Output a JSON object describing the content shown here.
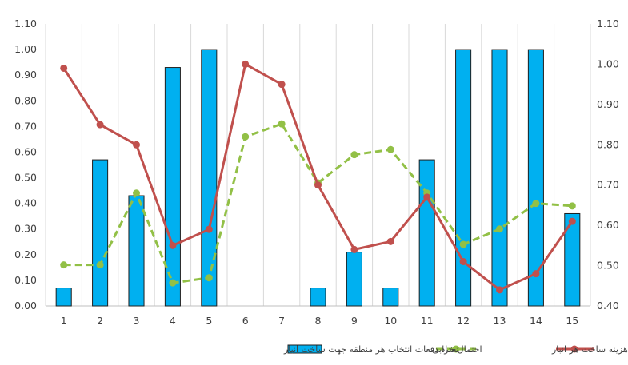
{
  "chart_data": {
    "type": "bar+line",
    "categories": [
      "1",
      "2",
      "3",
      "4",
      "5",
      "6",
      "7",
      "8",
      "9",
      "10",
      "11",
      "12",
      "13",
      "14",
      "15"
    ],
    "left_axis": {
      "ticks": [
        "0.00",
        "0.10",
        "0.20",
        "0.30",
        "0.40",
        "0.50",
        "0.60",
        "0.70",
        "0.80",
        "0.90",
        "1.00",
        "1.10"
      ],
      "min": 0,
      "max": 1.1
    },
    "right_axis": {
      "ticks": [
        "0.40",
        "0.50",
        "0.60",
        "0.70",
        "0.80",
        "0.90",
        "1.00",
        "1.10"
      ],
      "min": 0.4,
      "max": 1.1
    },
    "grid": "vertical",
    "legend_position": "bottom",
    "series": [
      {
        "name": "تعداد دفعات انتخاب هر منطقه جهت ساخت انبار",
        "kind": "bar",
        "axis": "left",
        "color": "#00b0f0",
        "values": [
          0.07,
          0.57,
          0.43,
          0.93,
          1.0,
          0,
          0,
          0.07,
          0.21,
          0.07,
          0.57,
          1.0,
          1.0,
          1.0,
          0.36
        ]
      },
      {
        "name": "احتمال خرابی",
        "kind": "line-dashed",
        "axis": "left",
        "color": "#92c046",
        "values": [
          0.16,
          0.16,
          0.44,
          0.09,
          0.11,
          0.66,
          0.71,
          0.48,
          0.59,
          0.61,
          0.44,
          0.24,
          0.3,
          0.4,
          0.39
        ]
      },
      {
        "name": "هزینه ساخت هر انبار",
        "kind": "line",
        "axis": "right",
        "color": "#c0504d",
        "values": [
          0.99,
          0.85,
          0.8,
          0.55,
          0.59,
          1.0,
          0.95,
          0.7,
          0.54,
          0.56,
          0.67,
          0.51,
          0.44,
          0.48,
          0.61
        ]
      }
    ]
  }
}
